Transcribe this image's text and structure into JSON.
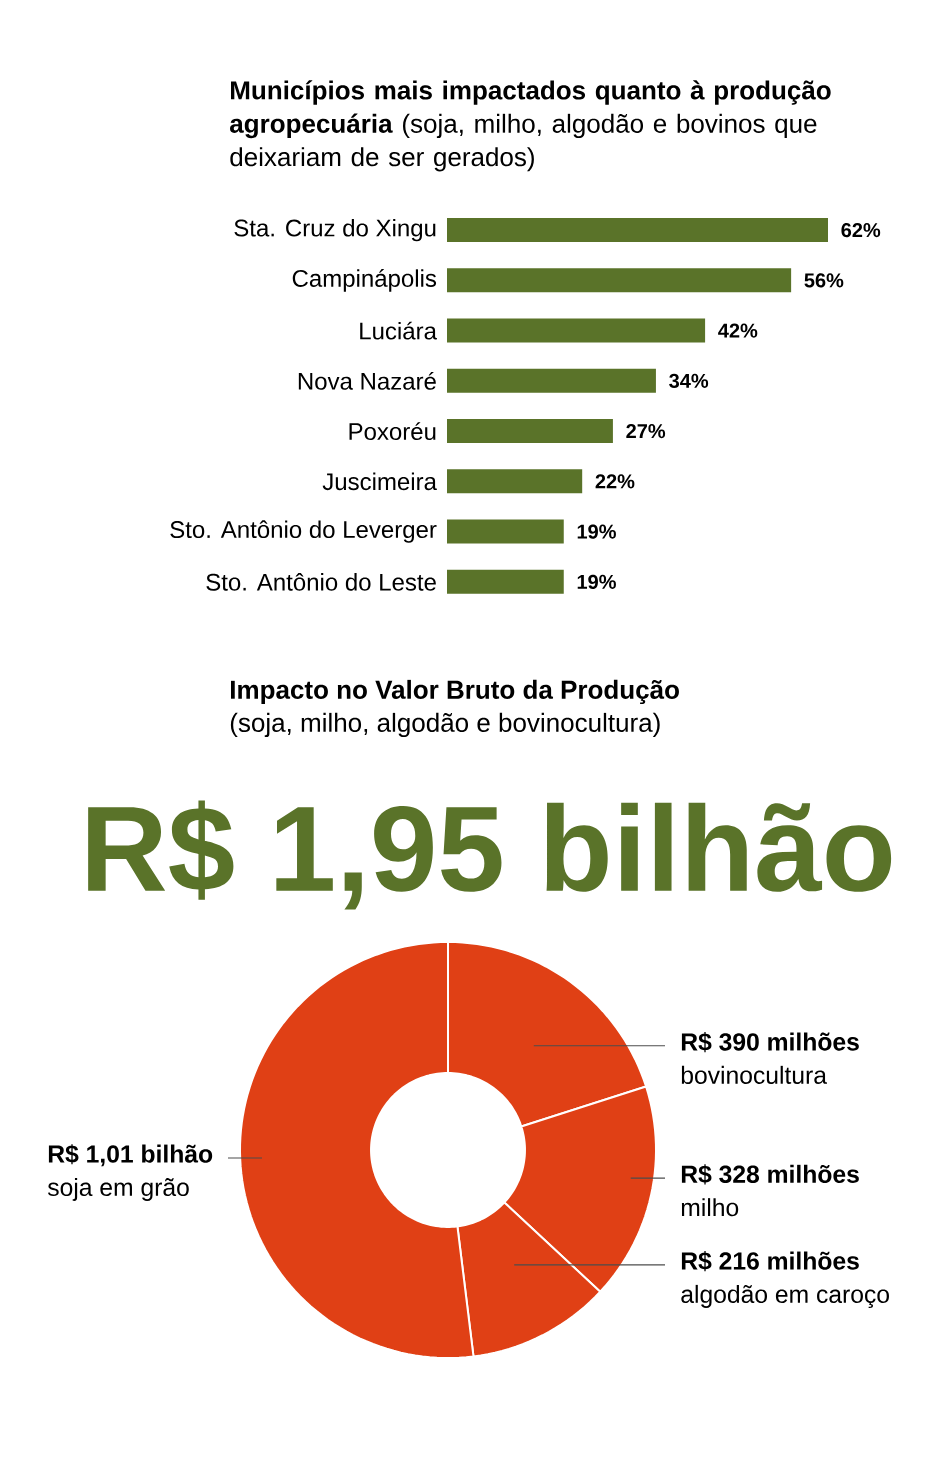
{
  "chart_data": [
    {
      "type": "bar",
      "orientation": "horizontal",
      "title": "**Municípios mais impactados quanto à produção agropecuária** (soja, milho, algodão e bovinos que deixariam de ser gerados)",
      "categories": [
        "Sta. Cruz do Xingu",
        "Campinápolis",
        "Luciára",
        "Nova Nazaré",
        "Poxoréu",
        "Juscimeira",
        "Sto. Antônio do Leverger",
        "Sto. Antônio do Leste"
      ],
      "values": [
        62,
        56,
        42,
        34,
        27,
        22,
        19,
        19
      ],
      "value_labels": [
        "62%",
        "56%",
        "42%",
        "34%",
        "27%",
        "22%",
        "19%",
        "19%"
      ],
      "color": "#5a7329"
    },
    {
      "type": "donut",
      "title": "Impacto no Valor Bruto da Produção",
      "subtitle": "(soja, milho, algodão e bovinocultura)",
      "annotations": [
        "R$ 1,95 bilhão"
      ],
      "categories": [
        "bovinocultura",
        "milho",
        "algodão em caroço",
        "soja em grão"
      ],
      "values": [
        390,
        328,
        216,
        1010
      ],
      "value_labels": [
        "R$ 390 milhões",
        "R$ 328 milhões",
        "R$ 216 milhões",
        "R$ 1,01 bilhão"
      ],
      "colors": [
        "#e04015",
        "#e04015",
        "#e04015",
        "#e04015"
      ]
    }
  ]
}
